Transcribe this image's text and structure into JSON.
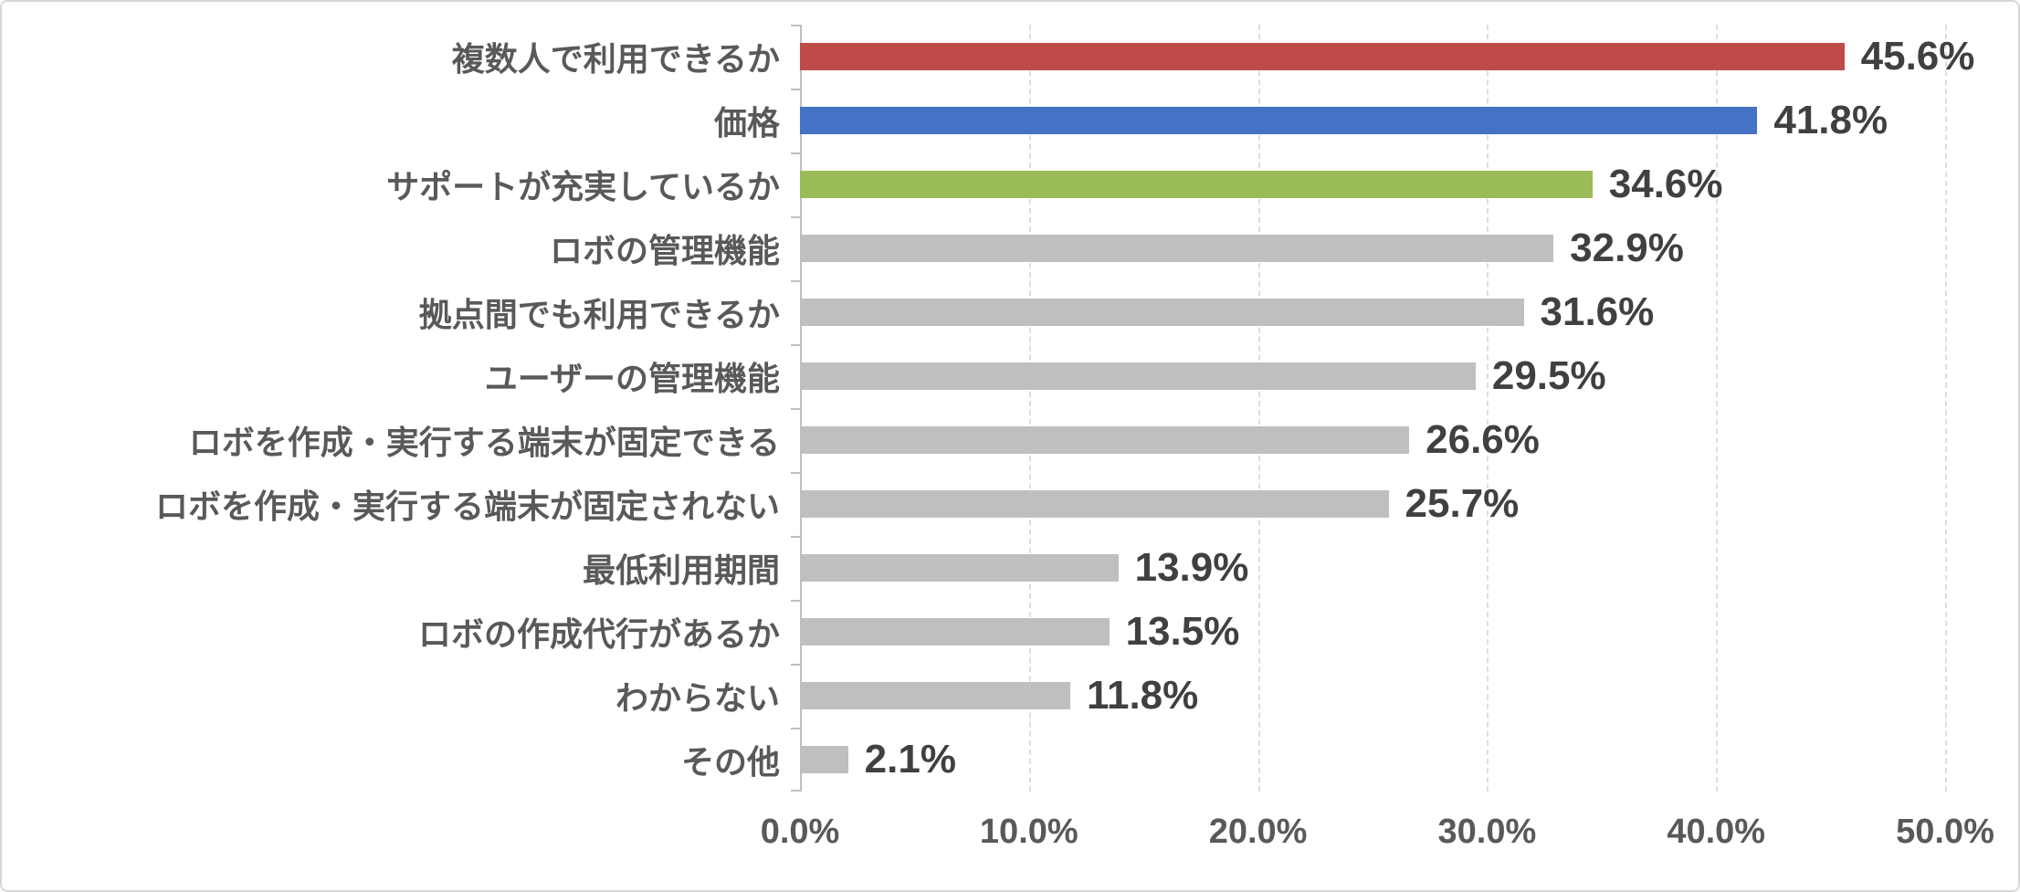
{
  "chart_data": {
    "type": "bar",
    "orientation": "horizontal",
    "title": "",
    "xlabel": "",
    "ylabel": "",
    "xlim": [
      0,
      50
    ],
    "grid": "vertical-dashed",
    "legend": "none",
    "categories": [
      "複数人で利用できるか",
      "価格",
      "サポートが充実しているか",
      "ロボの管理機能",
      "拠点間でも利用できるか",
      "ユーザーの管理機能",
      "ロボを作成・実行する端末が固定できる",
      "ロボを作成・実行する端末が固定されない",
      "最低利用期間",
      "ロボの作成代行があるか",
      "わからない",
      "その他"
    ],
    "values": [
      45.6,
      41.8,
      34.6,
      32.9,
      31.6,
      29.5,
      26.6,
      25.7,
      13.9,
      13.5,
      11.8,
      2.1
    ],
    "value_labels": [
      "45.6%",
      "41.8%",
      "34.6%",
      "32.9%",
      "31.6%",
      "29.5%",
      "26.6%",
      "25.7%",
      "13.9%",
      "13.5%",
      "11.8%",
      "2.1%"
    ],
    "bar_colors": [
      "#be4b48",
      "#4472c4",
      "#9bbb59",
      "#bfbfbf",
      "#bfbfbf",
      "#bfbfbf",
      "#bfbfbf",
      "#bfbfbf",
      "#bfbfbf",
      "#bfbfbf",
      "#bfbfbf",
      "#bfbfbf"
    ],
    "x_ticks": [
      "0.0%",
      "10.0%",
      "20.0%",
      "30.0%",
      "40.0%",
      "50.0%"
    ]
  },
  "colors": {
    "accent_red": "#be4b48",
    "accent_blue": "#4472c4",
    "accent_green": "#9bbb59",
    "bar_gray": "#bfbfbf",
    "gridline": "#dedede",
    "axis_line": "#bfbfbf",
    "category_text": "#595959",
    "value_text": "#404040",
    "axis_text": "#595959",
    "frame_border": "#d8d8d8",
    "background": "#ffffff"
  }
}
